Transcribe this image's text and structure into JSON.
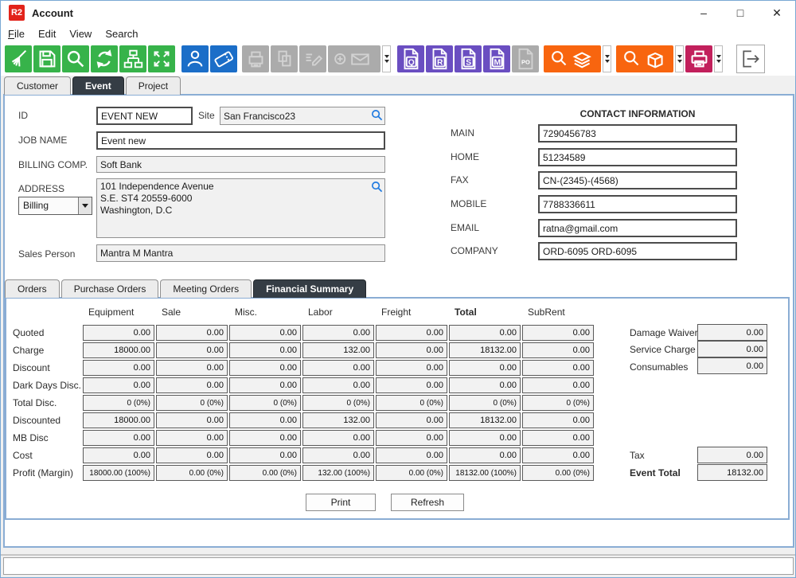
{
  "window": {
    "title": "Account",
    "logo_text": "R2",
    "controls": {
      "minimize": "–",
      "maximize": "□",
      "close": "✕"
    }
  },
  "menu": {
    "items": [
      "File",
      "Edit",
      "View",
      "Search"
    ]
  },
  "toolbar": {
    "colors": {
      "green": "#37b34a",
      "blue": "#1b6ec8",
      "purple": "#6a4ec1",
      "orange": "#f8650f",
      "magenta": "#c2205c",
      "disabled": "#ababab"
    },
    "icons": [
      "broom-icon",
      "save-icon",
      "search-icon",
      "refresh-icon",
      "hierarchy-icon",
      "expand-icon",
      "person-icon",
      "ticket-icon",
      "register-icon",
      "copy-docs-icon",
      "edit-icon",
      "add-mail-icon",
      "doc-q-icon",
      "doc-r-icon",
      "doc-s-icon",
      "doc-m-icon",
      "doc-po-icon",
      "search-stack-icon",
      "search-box-icon",
      "printer-icon",
      "exit-icon"
    ],
    "doc_letters": {
      "q": "Q",
      "r": "R",
      "s": "S",
      "m": "M",
      "po": "PO"
    }
  },
  "tabs": {
    "items": [
      {
        "label": "Customer"
      },
      {
        "label": "Event",
        "active": true
      },
      {
        "label": "Project"
      }
    ]
  },
  "form": {
    "id": {
      "label": "ID",
      "value": "EVENT NEW"
    },
    "site": {
      "label": "Site",
      "value": "San Francisco23"
    },
    "job_name": {
      "label": "JOB NAME",
      "value": "Event new"
    },
    "billing_comp": {
      "label": "BILLING COMP.",
      "value": "Soft Bank"
    },
    "address": {
      "label": "ADDRESS",
      "type_value": "Billing",
      "value": "101 Independence Avenue\nS.E. ST4 20559-6000\nWashington, D.C"
    },
    "sales_person": {
      "label": "Sales Person",
      "value": "Mantra M Mantra"
    }
  },
  "contact": {
    "header": "CONTACT INFORMATION",
    "fields": [
      {
        "label": "MAIN",
        "value": "7290456783"
      },
      {
        "label": "HOME",
        "value": "51234589"
      },
      {
        "label": "FAX",
        "value": "CN-(2345)-(4568)"
      },
      {
        "label": "MOBILE",
        "value": "7788336611"
      },
      {
        "label": "EMAIL",
        "value": "ratna@gmail.com"
      },
      {
        "label": "COMPANY",
        "value": "ORD-6095 ORD-6095"
      }
    ]
  },
  "subtabs": {
    "items": [
      {
        "label": "Orders"
      },
      {
        "label": "Purchase Orders"
      },
      {
        "label": "Meeting Orders"
      },
      {
        "label": "Financial Summary",
        "active": true
      }
    ]
  },
  "financial": {
    "columns": [
      "Equipment",
      "Sale",
      "Misc.",
      "Labor",
      "Freight",
      "Total",
      "SubRent"
    ],
    "bold_column": "Total",
    "rows": [
      {
        "label": "Quoted",
        "values": [
          "0.00",
          "0.00",
          "0.00",
          "0.00",
          "0.00",
          "0.00",
          "0.00"
        ]
      },
      {
        "label": "Charge",
        "values": [
          "18000.00",
          "0.00",
          "0.00",
          "132.00",
          "0.00",
          "18132.00",
          "0.00"
        ]
      },
      {
        "label": "Discount",
        "values": [
          "0.00",
          "0.00",
          "0.00",
          "0.00",
          "0.00",
          "0.00",
          "0.00"
        ]
      },
      {
        "label": "Dark Days Disc.",
        "values": [
          "0.00",
          "0.00",
          "0.00",
          "0.00",
          "0.00",
          "0.00",
          "0.00"
        ]
      },
      {
        "label": "Total Disc.",
        "values": [
          "0 (0%)",
          "0 (0%)",
          "0 (0%)",
          "0 (0%)",
          "0 (0%)",
          "0 (0%)",
          "0 (0%)"
        ]
      },
      {
        "label": "Discounted",
        "values": [
          "18000.00",
          "0.00",
          "0.00",
          "132.00",
          "0.00",
          "18132.00",
          "0.00"
        ]
      },
      {
        "label": "MB Disc",
        "values": [
          "0.00",
          "0.00",
          "0.00",
          "0.00",
          "0.00",
          "0.00",
          "0.00"
        ]
      },
      {
        "label": "Cost",
        "values": [
          "0.00",
          "0.00",
          "0.00",
          "0.00",
          "0.00",
          "0.00",
          "0.00"
        ]
      },
      {
        "label": "Profit (Margin)",
        "values": [
          "18000.00 (100%)",
          "0.00 (0%)",
          "0.00 (0%)",
          "132.00 (100%)",
          "0.00 (0%)",
          "18132.00 (100%)",
          "0.00 (0%)"
        ]
      }
    ],
    "side_fields": [
      {
        "label": "Damage Waiver",
        "value": "0.00"
      },
      {
        "label": "Service Charge",
        "value": "0.00"
      },
      {
        "label": "Consumables",
        "value": "0.00"
      }
    ],
    "totals": [
      {
        "label": "Tax",
        "value": "0.00"
      },
      {
        "label": "Event Total",
        "value": "18132.00"
      }
    ],
    "buttons": {
      "print": "Print",
      "refresh": "Refresh"
    }
  }
}
